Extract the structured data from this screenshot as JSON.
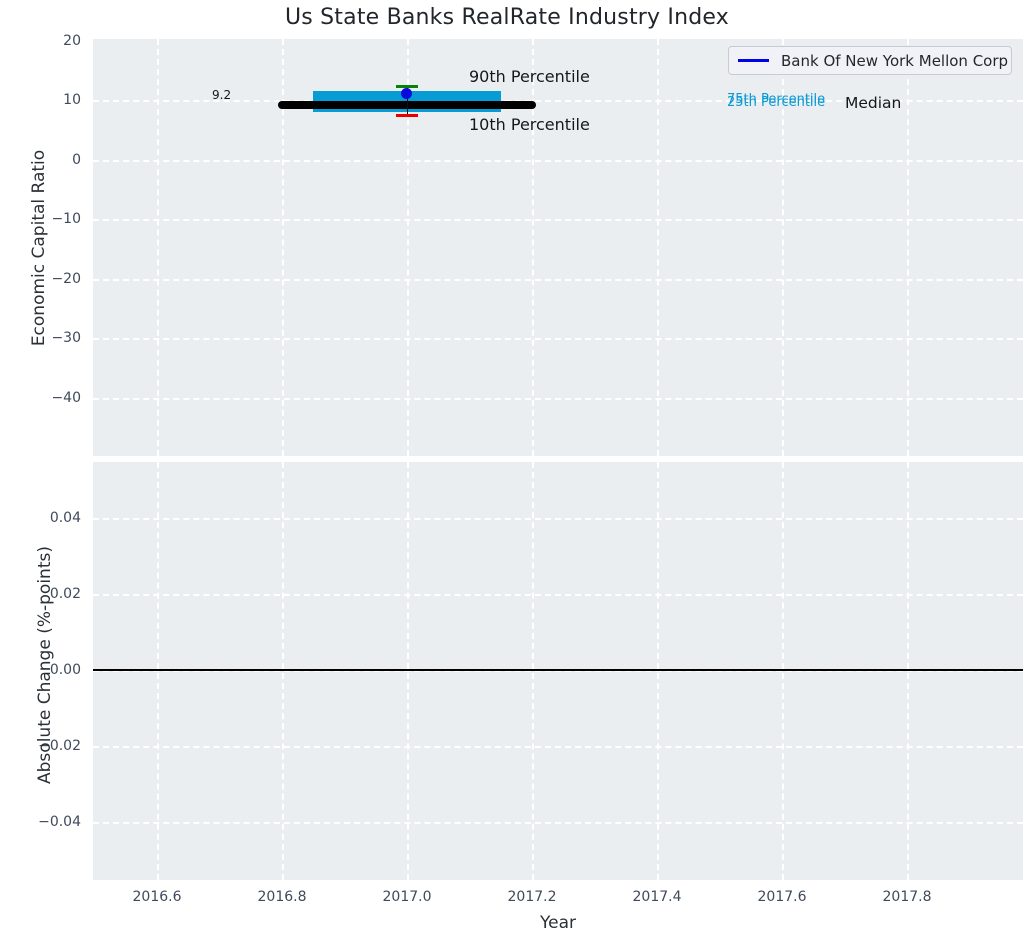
{
  "title": "Us State Banks RealRate Industry Index",
  "xlabel": "Year",
  "xticks": [
    "2016.6",
    "2016.8",
    "2017.0",
    "2017.2",
    "2017.4",
    "2017.6",
    "2017.8"
  ],
  "top_axes": {
    "ylabel": "Economic Capital Ratio",
    "yticks": [
      "20",
      "10",
      "0",
      "−10",
      "−20",
      "−30",
      "−40"
    ],
    "annotations": {
      "median_value": "9.2",
      "p90": "90th Percentile",
      "p10": "10th Percentile",
      "p75": "75th Percentile",
      "p25": "25th Percentile",
      "median": "Median"
    },
    "legend": {
      "label": "Bank Of New York Mellon Corp"
    }
  },
  "bottom_axes": {
    "ylabel": "Absolute Change (%-points)",
    "yticks": [
      "0.04",
      "0.02",
      "0.00",
      "−0.02",
      "−0.04"
    ]
  },
  "colors": {
    "axes_background": "#eaeef1",
    "gridline": "#ffffff",
    "percentile_box": "#079cd4",
    "percentile_label": "#0c9bd5",
    "median_line": "#000000",
    "p90_cap": "#078207",
    "p10_cap": "#e60000",
    "company_point": "#0a0ae0",
    "legend_line": "#0202e6",
    "zero_line": "#000000",
    "tick_label": "#3f4a5a"
  },
  "chart_data": [
    {
      "type": "box",
      "title": "Us State Banks RealRate Industry Index",
      "xlabel": "Year",
      "ylabel": "Economic Capital Ratio",
      "xlim": [
        2016.5,
        2017.99
      ],
      "ylim": [
        -50,
        21
      ],
      "yticks": [
        20,
        10,
        0,
        -10,
        -20,
        -30,
        -40
      ],
      "xticks": [
        2016.6,
        2016.8,
        2017.0,
        2017.2,
        2017.4,
        2017.6,
        2017.8
      ],
      "grid": true,
      "legend_position": "upper right",
      "boxes": [
        {
          "x": 2017.0,
          "box_x_range": [
            2016.85,
            2017.15
          ],
          "median_x_range": [
            2016.8,
            2017.2
          ],
          "p90": 12.4,
          "p75": 11.5,
          "median": 9.2,
          "p25": 8.1,
          "p10": 7.6,
          "median_data_label": "9.2"
        }
      ],
      "series": [
        {
          "name": "Bank Of New York Mellon Corp",
          "x": [
            2017.0
          ],
          "y": [
            11.2
          ],
          "marker": "circle",
          "color": "#0a0ae0"
        }
      ],
      "annotations": [
        "90th Percentile",
        "10th Percentile",
        "75th Percentile",
        "25th Percentile",
        "Median",
        "9.2"
      ]
    },
    {
      "type": "line",
      "xlabel": "Year",
      "ylabel": "Absolute Change (%-points)",
      "xlim": [
        2016.5,
        2017.99
      ],
      "ylim": [
        -0.055,
        0.055
      ],
      "yticks": [
        0.04,
        0.02,
        0.0,
        -0.02,
        -0.04
      ],
      "xticks": [
        2016.6,
        2016.8,
        2017.0,
        2017.2,
        2017.4,
        2017.6,
        2017.8
      ],
      "grid": true,
      "zero_line": 0.0,
      "series": []
    }
  ]
}
